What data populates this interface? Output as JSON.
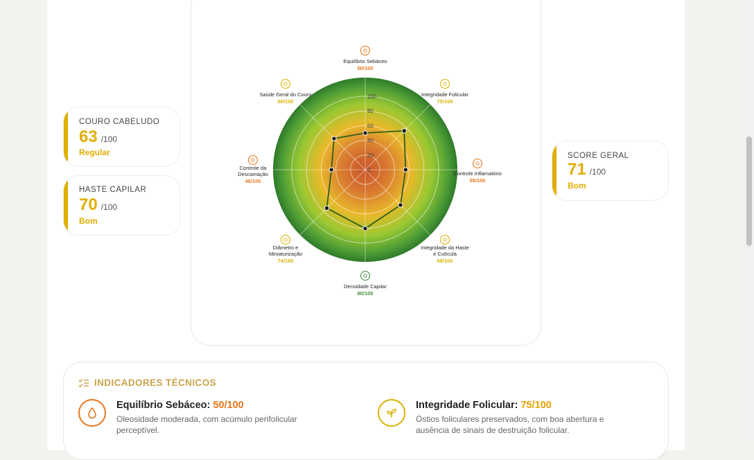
{
  "cards": [
    {
      "label": "COURO CABELUDO",
      "score": "63",
      "denominator": "/100",
      "status": "Regular"
    },
    {
      "label": "HASTE CAPILAR",
      "score": "70",
      "denominator": "/100",
      "status": "Bom"
    },
    {
      "label": "SCORE GERAL",
      "score": "71",
      "denominator": "/100",
      "status": "Bom"
    }
  ],
  "chart_data": {
    "type": "radar",
    "rlim": [
      0,
      100
    ],
    "ticks": [
      "0",
      "20",
      "40",
      "60",
      "80",
      "100"
    ],
    "axes": [
      {
        "name": "Equilíbrio Sebáceo",
        "value": 50,
        "score_text": "50/100",
        "color": "#e8761c",
        "icon": "drop-icon"
      },
      {
        "name": "Integridade Folicular",
        "value": 75,
        "score_text": "75/100",
        "color": "#d8b300",
        "icon": "sprout-icon"
      },
      {
        "name": "Controle Inflamatório",
        "value": 55,
        "score_text": "55/100",
        "color": "#e8761c",
        "icon": "flame-icon"
      },
      {
        "name": "Integridade da Haste e Cutícula",
        "value": 68,
        "score_text": "68/100",
        "color": "#d8b300",
        "icon": "shield-icon"
      },
      {
        "name": "Densidade Capilar",
        "value": 80,
        "score_text": "80/100",
        "color": "#3f8f3a",
        "icon": "density-icon"
      },
      {
        "name": "Diâmetro e Miniaturização",
        "value": 74,
        "score_text": "74/100",
        "color": "#d8b300",
        "icon": "diameter-icon"
      },
      {
        "name": "Controle da Descamação",
        "value": 46,
        "score_text": "46/100",
        "color": "#e8761c",
        "icon": "flake-icon"
      },
      {
        "name": "Saúde Geral do Couro",
        "value": 60,
        "score_text": "60/100",
        "color": "#d8b300",
        "icon": "scalp-icon"
      }
    ],
    "line_color": "#2f5e1a"
  },
  "indicators": {
    "title": "INDICADORES TÉCNICOS",
    "items": [
      {
        "name": "Equilíbrio Sebáceo:",
        "score": "50/100",
        "color": "#e8761c",
        "icon": "drop-icon",
        "desc1": "Oleosidade moderada, com acúmulo perifolicular",
        "desc2": "perceptível."
      },
      {
        "name": "Integridade Folicular:",
        "score": "75/100",
        "color": "#d8b300",
        "icon": "sprout-icon",
        "desc1": "Óstios foliculares preservados, com boa abertura e",
        "desc2": "ausência de sinais de destruição folicular."
      }
    ]
  }
}
